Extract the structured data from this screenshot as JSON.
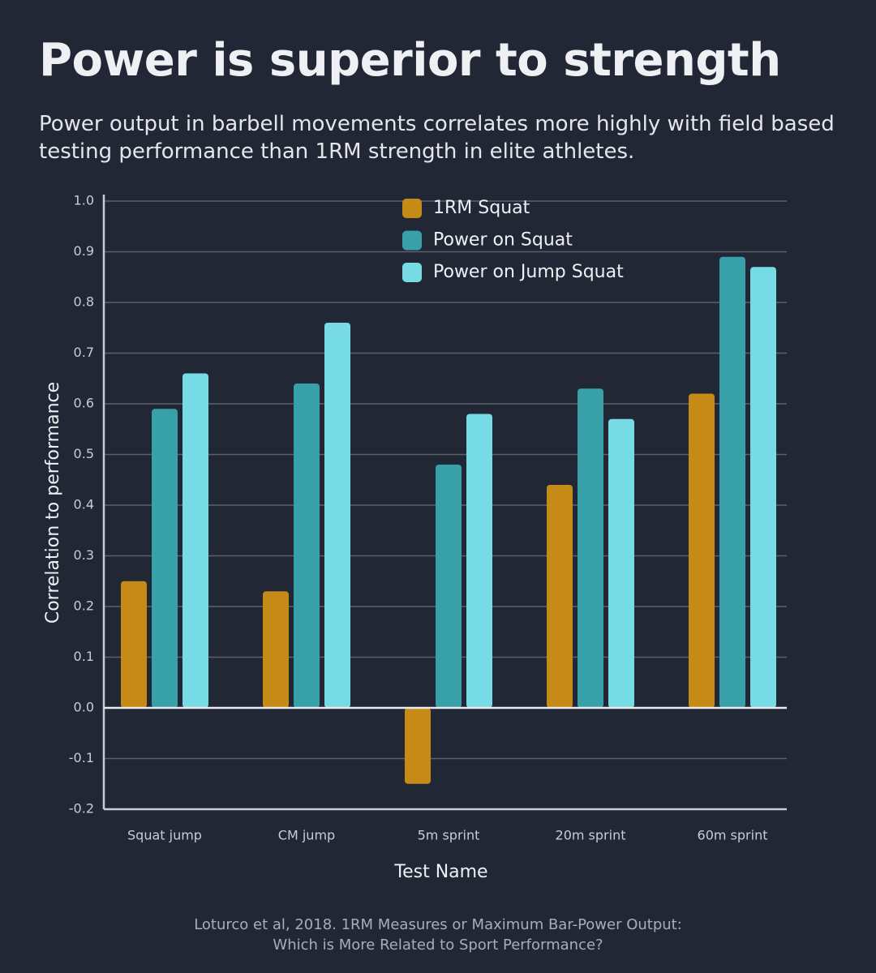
{
  "chart_data": {
    "type": "bar",
    "title": "Power is superior to strength",
    "subtitle": "Power output in barbell movements correlates more highly with field based testing performance than 1RM strength in elite athletes.",
    "x_label": "Test Name",
    "y_label": "Correlation to performance",
    "source": [
      "Loturco et al, 2018. 1RM Measures or Maximum Bar-Power Output:",
      "Which is More Related to Sport Performance?"
    ],
    "categories": [
      "Squat jump",
      "CM jump",
      "5m sprint",
      "20m sprint",
      "60m sprint"
    ],
    "series": [
      {
        "name": "1RM Squat",
        "color": "#c68a17",
        "values": [
          0.25,
          0.23,
          -0.15,
          0.44,
          0.62
        ]
      },
      {
        "name": "Power on Squat",
        "color": "#38a0a8",
        "values": [
          0.59,
          0.64,
          0.48,
          0.63,
          0.89
        ]
      },
      {
        "name": "Power on Jump Squat",
        "color": "#76dbe5",
        "values": [
          0.66,
          0.76,
          0.58,
          0.57,
          0.87
        ]
      }
    ],
    "ylim": [
      -0.2,
      1
    ],
    "yticks": [
      {
        "value": 1,
        "label": "1.0"
      },
      0.9,
      0.8,
      0.7,
      0.6,
      0.5,
      0.4,
      0.3,
      0.2,
      0.1,
      {
        "value": 0,
        "label": "0.0"
      },
      -0.1,
      -0.2
    ],
    "grid": true
  }
}
